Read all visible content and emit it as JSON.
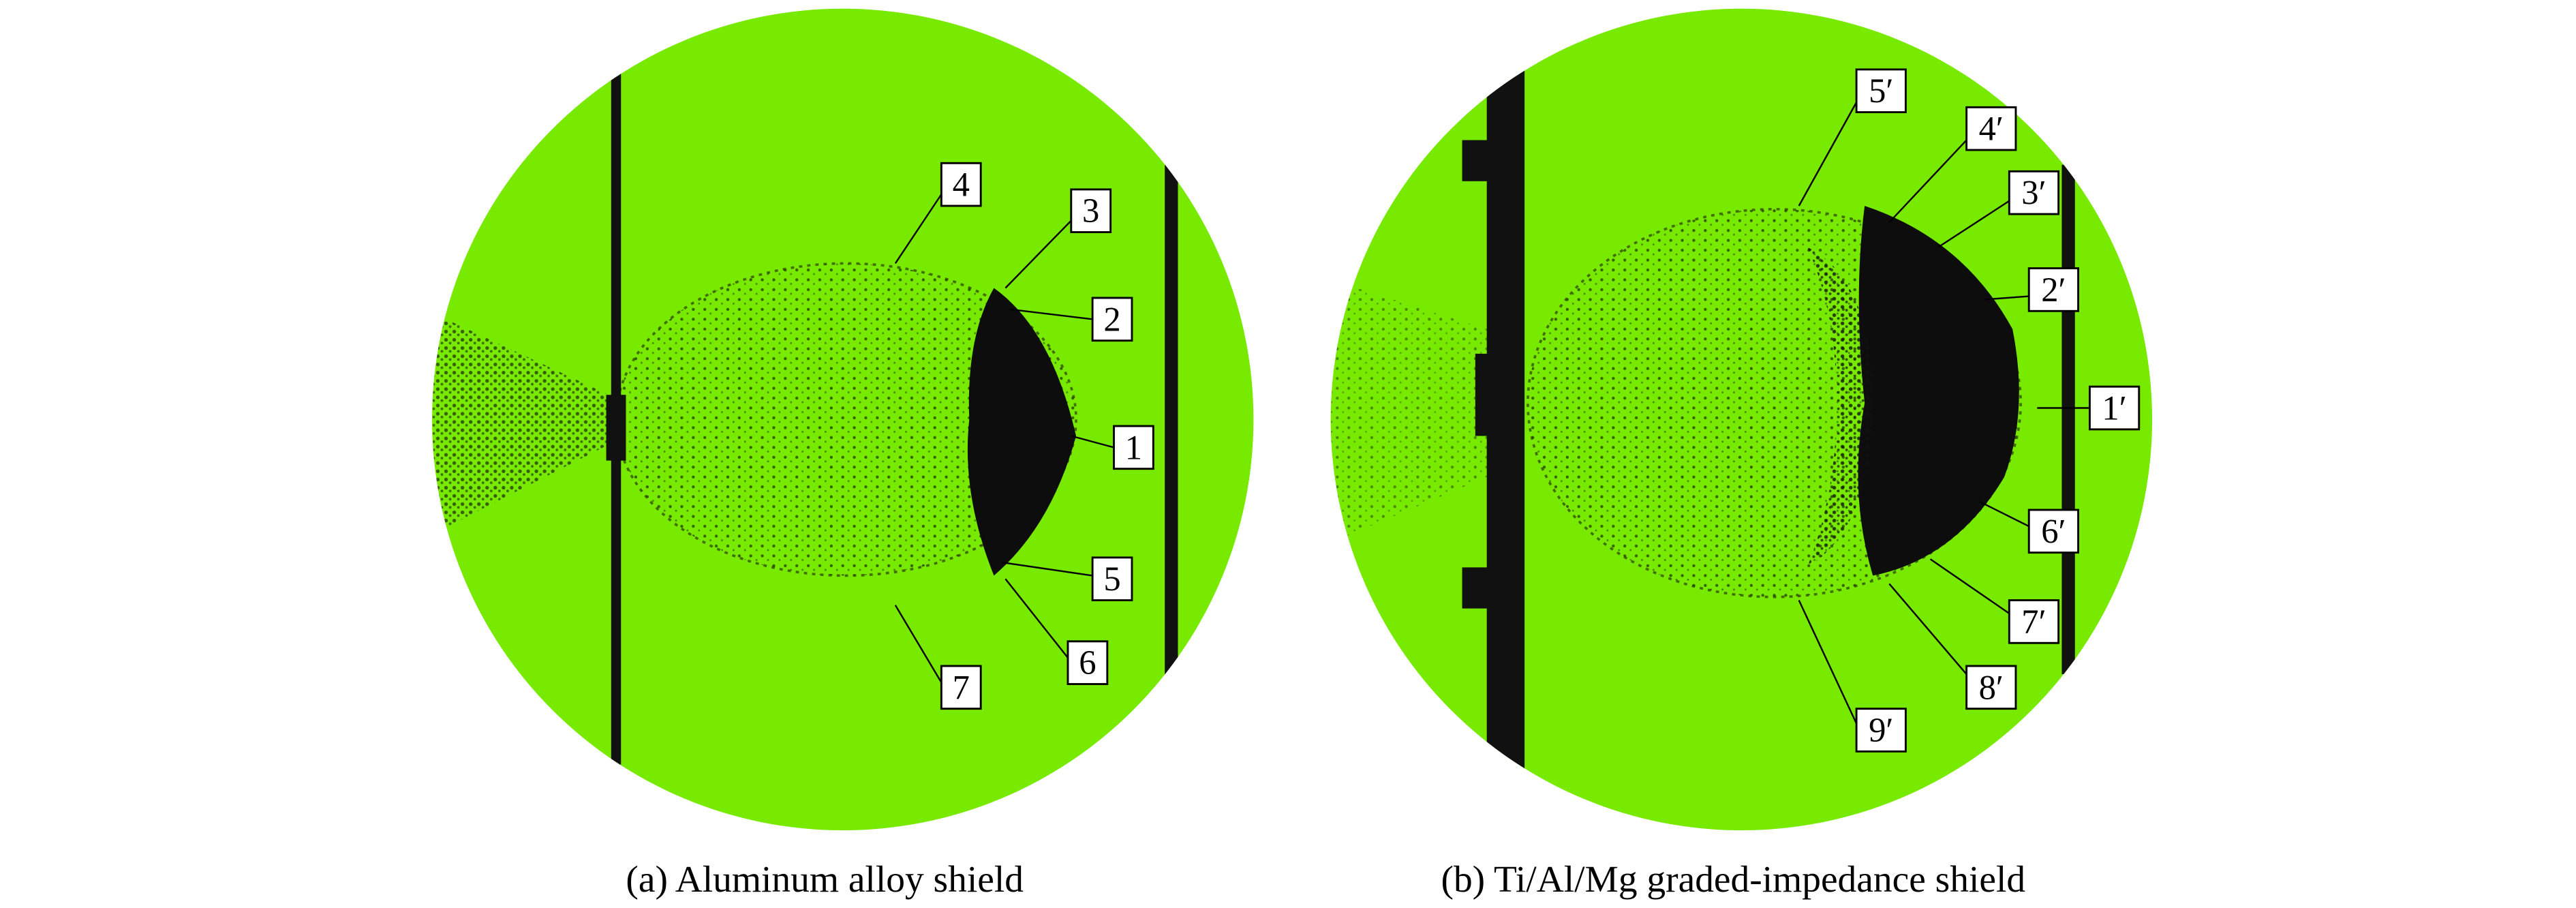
{
  "panels": [
    {
      "caption": "(a) Aluminum alloy shield",
      "labels": [
        "1",
        "2",
        "3",
        "4",
        "5",
        "6",
        "7"
      ]
    },
    {
      "caption": "(b) Ti/Al/Mg graded-impedance shield",
      "labels": [
        "1′",
        "2′",
        "3′",
        "4′",
        "5′",
        "6′",
        "7′",
        "8′",
        "9′"
      ]
    }
  ]
}
